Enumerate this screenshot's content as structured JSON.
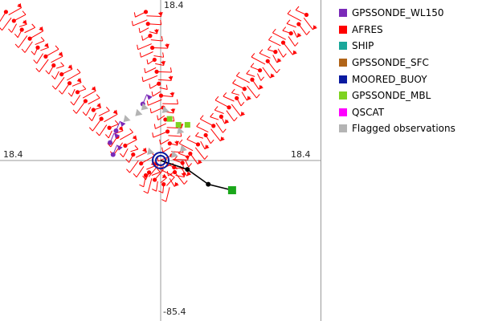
{
  "chart_data": {
    "type": "scatter",
    "title": "",
    "axis_labels": {
      "top": "18.4",
      "left": "18.4",
      "right": "18.4",
      "bottom": "-85.4"
    },
    "axis_color": "#9a9a9a",
    "legend_placement": "right",
    "legend": [
      {
        "name": "GPSSONDE_WL150",
        "color": "#7a2ab8"
      },
      {
        "name": "AFRES",
        "color": "#ff0000"
      },
      {
        "name": "SHIP",
        "color": "#1aa79a"
      },
      {
        "name": "GPSSONDE_SFC",
        "color": "#b06418"
      },
      {
        "name": "MOORED_BUOY",
        "color": "#0a1aa0"
      },
      {
        "name": "GPSSONDE_MBL",
        "color": "#7ed321"
      },
      {
        "name": "QSCAT",
        "color": "#ff00ff"
      },
      {
        "name": "Flagged observations",
        "color": "#b4b4b4"
      }
    ],
    "flight_legs": [
      {
        "series": "AFRES",
        "from": [
          -52,
          50
        ],
        "to": [
          -3,
          -5
        ]
      },
      {
        "series": "AFRES",
        "from": [
          -5,
          50
        ],
        "to": [
          5,
          -5
        ]
      },
      {
        "series": "AFRES",
        "from": [
          49,
          49
        ],
        "to": [
          3,
          -6
        ]
      },
      {
        "series": "AFRES",
        "from": [
          -5,
          -5
        ],
        "to": [
          3,
          -9
        ]
      }
    ],
    "storm_track": {
      "color": "#000000",
      "points": [
        [
          0,
          0
        ],
        [
          9,
          -3
        ],
        [
          16,
          -8
        ],
        [
          24,
          -10
        ]
      ],
      "end_marker_color": "#1aa71a"
    },
    "buoy_marker": {
      "series": "MOORED_BUOY",
      "x": 0,
      "y": 0
    },
    "gpssonde_wl150": [
      [
        -15,
        10
      ],
      [
        -17,
        6
      ],
      [
        -16,
        2
      ],
      [
        -6,
        19
      ]
    ],
    "gpssonde_mbl": [
      [
        3,
        14
      ],
      [
        6,
        12
      ],
      [
        9,
        12
      ]
    ],
    "flagged": [
      [
        -6,
        18
      ],
      [
        -8,
        16
      ],
      [
        -12,
        14
      ],
      [
        -4,
        3
      ],
      [
        1,
        17
      ],
      [
        6,
        10
      ],
      [
        4,
        2
      ],
      [
        7,
        4
      ]
    ],
    "xlim": [
      -54,
      54
    ],
    "ylim": [
      -54,
      54
    ]
  }
}
